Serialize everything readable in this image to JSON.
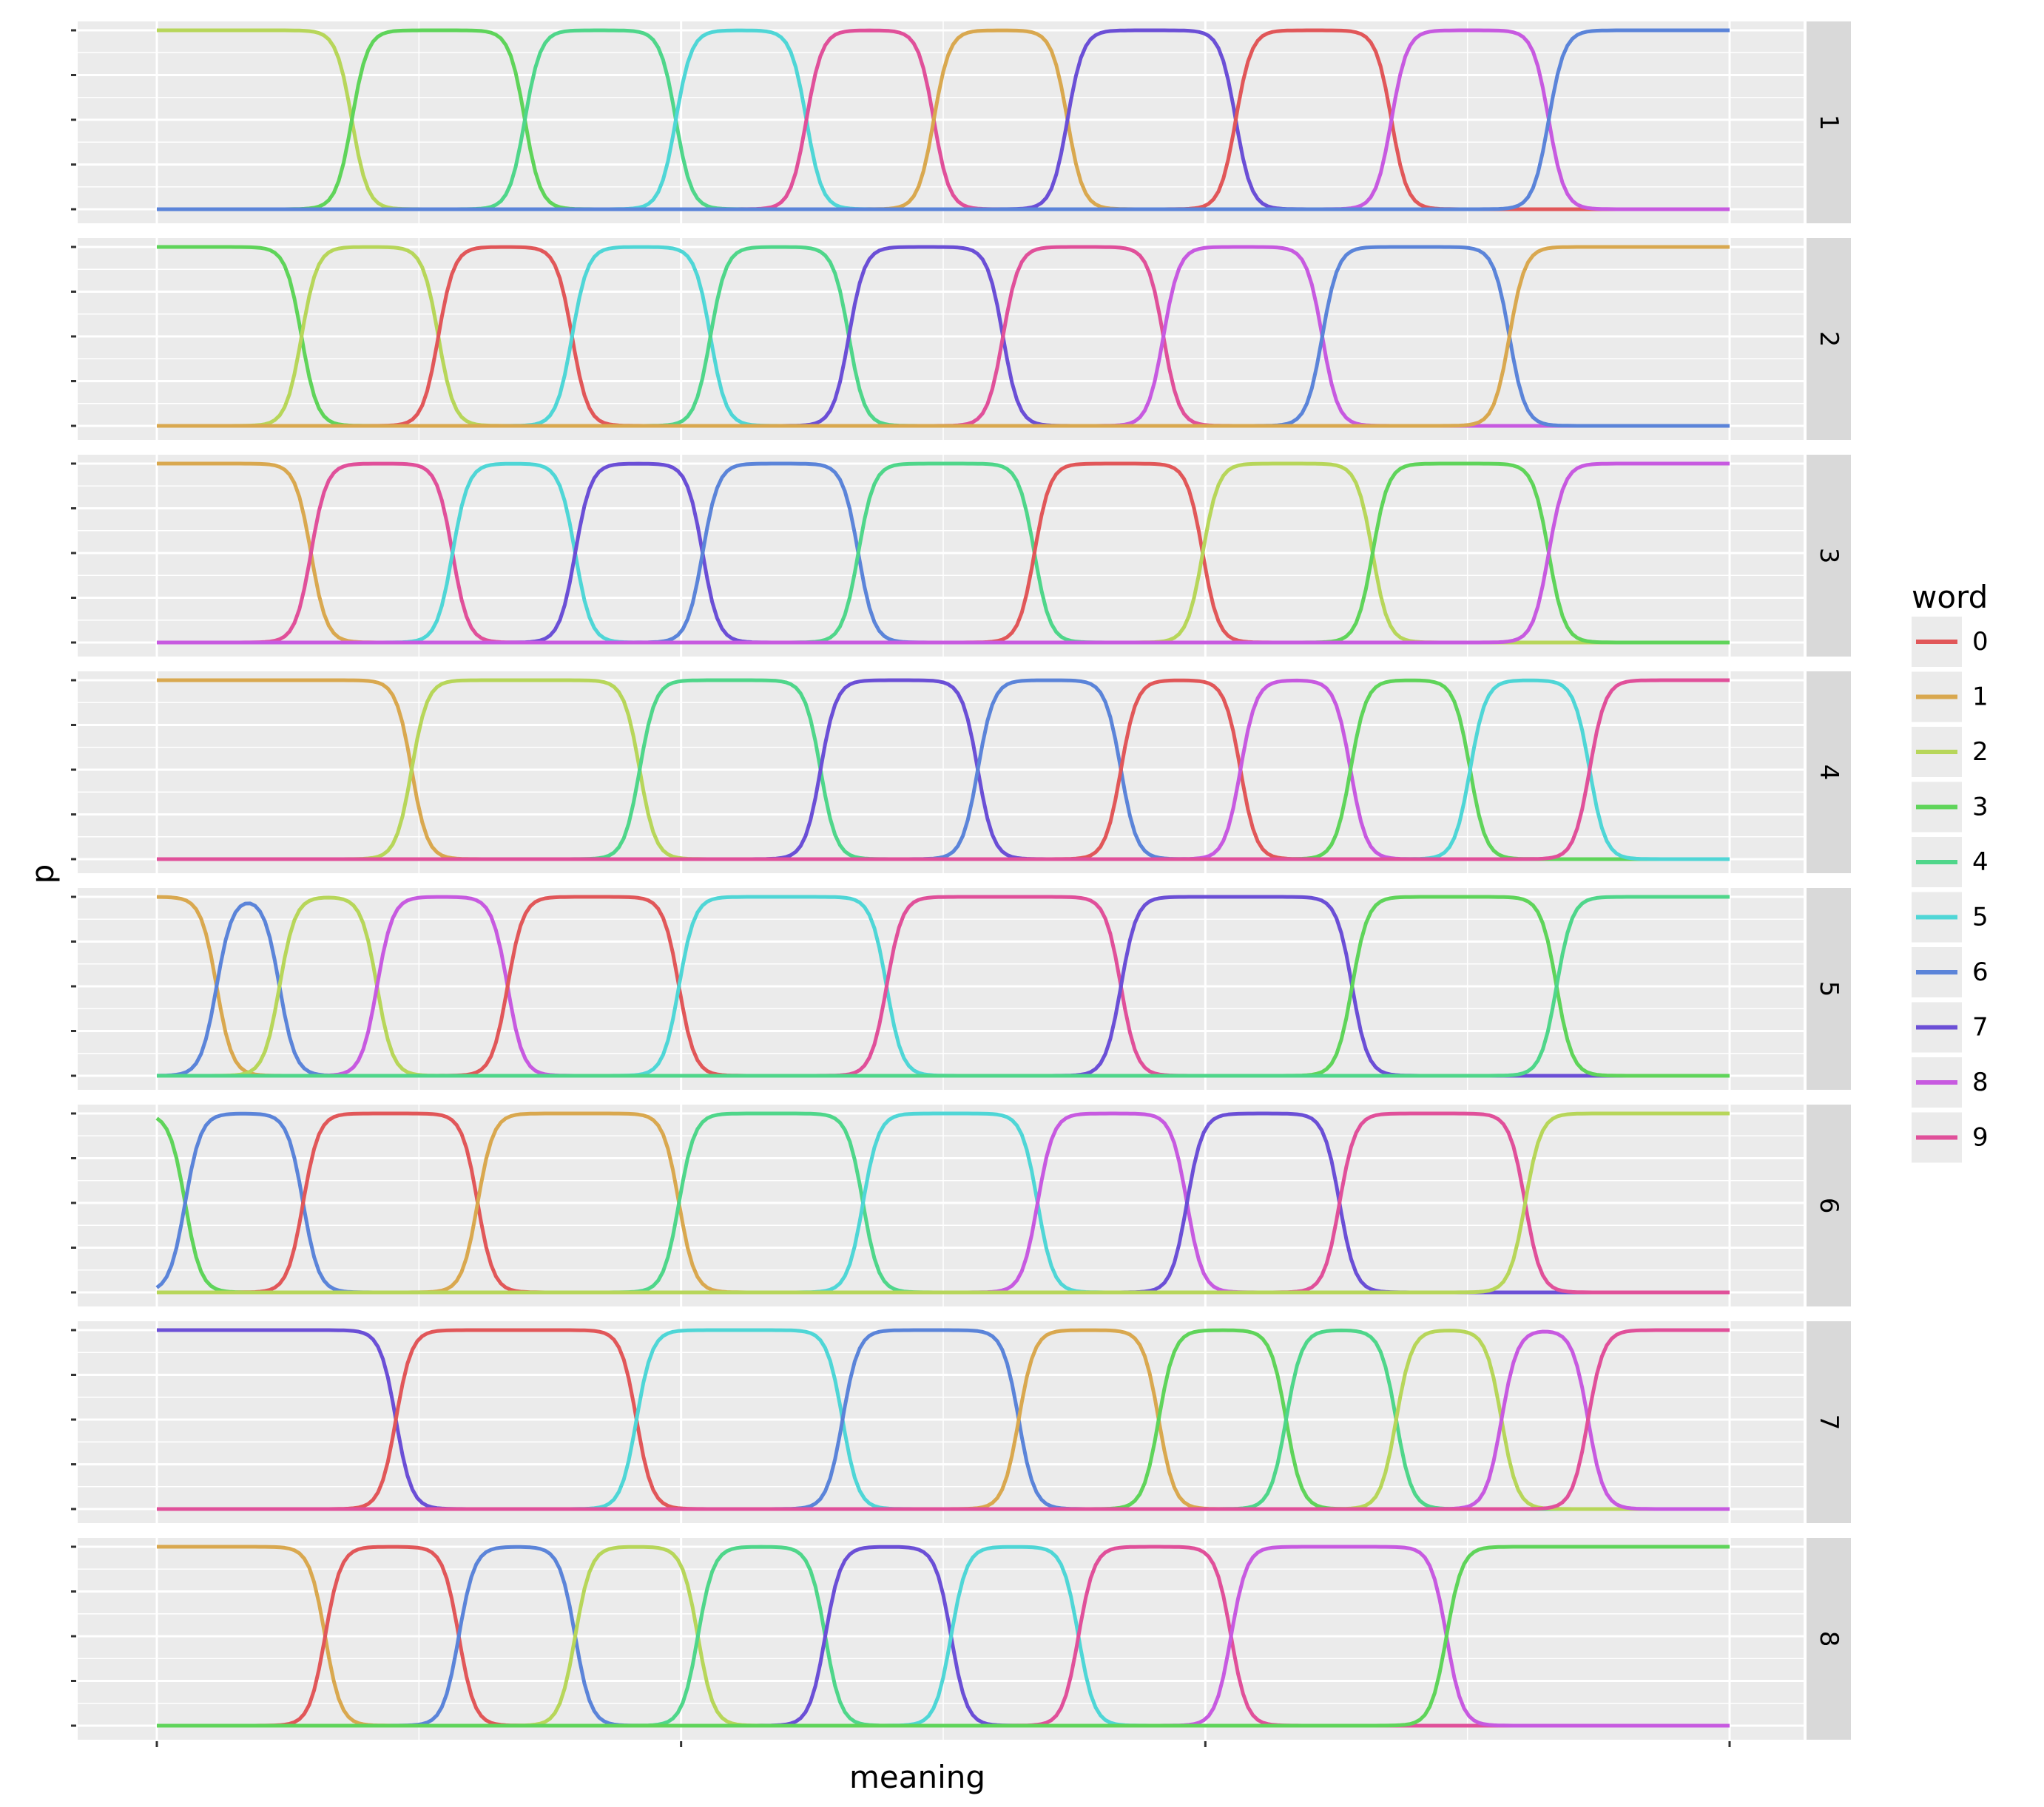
{
  "chart_data": {
    "type": "line",
    "facet_by": "panel",
    "xlabel": "meaning",
    "ylabel": "p",
    "x_tick_labels": [],
    "y_tick_labels": [],
    "xlim": [
      0,
      100
    ],
    "ylim": [
      0,
      1
    ],
    "grid": true,
    "facet_strip_position": "right",
    "legend": {
      "title": "word",
      "position": "right",
      "entries": [
        "0",
        "1",
        "2",
        "3",
        "4",
        "5",
        "6",
        "7",
        "8",
        "9"
      ]
    },
    "word_colors": {
      "0": "#e15759",
      "1": "#d9a84f",
      "2": "#b7d65a",
      "3": "#5fd45a",
      "4": "#4fd68a",
      "5": "#4fd6d6",
      "6": "#5b84d9",
      "7": "#6b4fd6",
      "8": "#c75ae0",
      "9": "#e0509a"
    },
    "panels": [
      {
        "label": "1",
        "words": [
          "2",
          "3",
          "4",
          "5",
          "9",
          "1",
          "7",
          "0",
          "8",
          "6"
        ],
        "boundaries": [
          12.4,
          23.4,
          33.0,
          41.3,
          49.4,
          57.9,
          68.6,
          78.5,
          88.5
        ]
      },
      {
        "label": "2",
        "words": [
          "3",
          "2",
          "0",
          "5",
          "4",
          "7",
          "9",
          "8",
          "6",
          "1"
        ],
        "boundaries": [
          9.2,
          17.9,
          26.4,
          35.2,
          44.0,
          53.8,
          64.0,
          74.1,
          86.0
        ]
      },
      {
        "label": "3",
        "words": [
          "1",
          "9",
          "5",
          "7",
          "6",
          "4",
          "0",
          "2",
          "3",
          "8"
        ],
        "boundaries": [
          9.8,
          18.8,
          26.6,
          34.7,
          44.6,
          55.8,
          66.5,
          77.3,
          88.5
        ]
      },
      {
        "label": "4",
        "words": [
          "1",
          "2",
          "4",
          "7",
          "6",
          "0",
          "8",
          "3",
          "5",
          "9"
        ],
        "boundaries": [
          16.2,
          30.7,
          42.2,
          52.2,
          61.3,
          68.9,
          75.9,
          83.5,
          91.1
        ]
      },
      {
        "label": "5",
        "words": [
          "1",
          "6",
          "2",
          "8",
          "0",
          "5",
          "9",
          "7",
          "3",
          "4"
        ],
        "boundaries": [
          3.8,
          7.8,
          14.0,
          22.3,
          33.2,
          46.4,
          61.3,
          76.0,
          89.0
        ]
      },
      {
        "label": "6",
        "words": [
          "3",
          "6",
          "0",
          "1",
          "4",
          "5",
          "8",
          "7",
          "9",
          "2"
        ],
        "boundaries": [
          1.8,
          9.3,
          20.4,
          33.2,
          44.9,
          56.0,
          65.5,
          75.2,
          87.0
        ]
      },
      {
        "label": "7",
        "words": [
          "7",
          "0",
          "5",
          "6",
          "1",
          "3",
          "4",
          "2",
          "8",
          "9"
        ],
        "boundaries": [
          15.2,
          30.5,
          43.6,
          54.8,
          63.7,
          71.8,
          78.8,
          85.5,
          91.0
        ]
      },
      {
        "label": "8",
        "words": [
          "1",
          "0",
          "6",
          "2",
          "4",
          "7",
          "5",
          "9",
          "8",
          "3"
        ],
        "boundaries": [
          10.7,
          19.2,
          26.6,
          34.4,
          42.5,
          50.5,
          58.6,
          68.3,
          82.0
        ]
      }
    ]
  }
}
